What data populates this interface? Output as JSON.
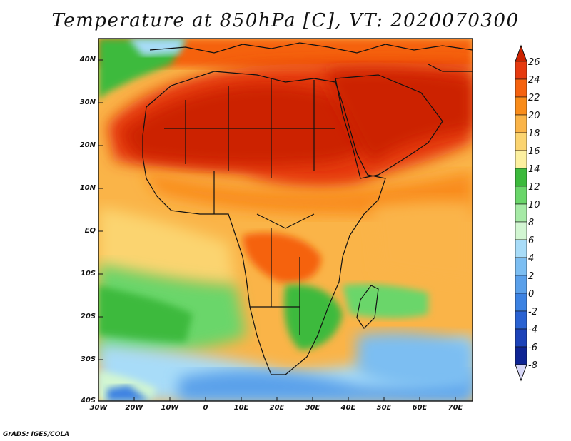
{
  "title": "Temperature at 850hPa [C], VT: 2020070300",
  "credit": "GrADS: IGES/COLA",
  "lat_labels": [
    "40N",
    "30N",
    "20N",
    "10N",
    "EQ",
    "10S",
    "20S",
    "30S",
    "40S"
  ],
  "lat_values": [
    40,
    30,
    20,
    10,
    0,
    -10,
    -20,
    -30,
    -40
  ],
  "lon_labels": [
    "30W",
    "20W",
    "10W",
    "0",
    "10E",
    "20E",
    "30E",
    "40E",
    "50E",
    "60E",
    "70E"
  ],
  "lon_values": [
    -30,
    -20,
    -10,
    0,
    10,
    20,
    30,
    40,
    50,
    60,
    70
  ],
  "colorbar": {
    "labels": [
      "26",
      "24",
      "22",
      "20",
      "18",
      "16",
      "14",
      "12",
      "10",
      "8",
      "6",
      "4",
      "2",
      "0",
      "-2",
      "-4",
      "-6",
      "-8"
    ],
    "colors": [
      "#cc2200",
      "#e63a10",
      "#f5620f",
      "#f98c1a",
      "#fab448",
      "#fbd470",
      "#fcf0a0",
      "#3cba3c",
      "#6ad66a",
      "#a6eaa6",
      "#d2f6d2",
      "#a8dcf8",
      "#7cbef2",
      "#5aa0ea",
      "#3c82e2",
      "#2a62d2",
      "#1c42b8",
      "#0e2494",
      "#0a1266"
    ]
  },
  "map": {
    "lon_range": [
      -30,
      75
    ],
    "lat_range": [
      -40,
      45
    ],
    "land_mask_note": "Africa, Arabian Peninsula, southern Europe and Madagascar outlines"
  }
}
